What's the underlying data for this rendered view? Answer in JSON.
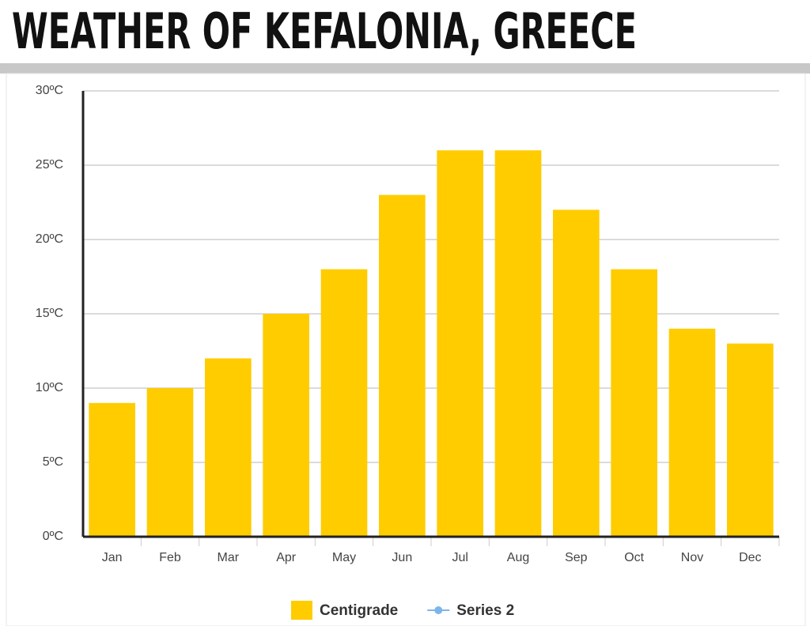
{
  "chart_data": {
    "type": "bar",
    "title": "WEATHER OF KEFALONIA, GREECE",
    "categories": [
      "Jan",
      "Feb",
      "Mar",
      "Apr",
      "May",
      "Jun",
      "Jul",
      "Aug",
      "Sep",
      "Oct",
      "Nov",
      "Dec"
    ],
    "series": [
      {
        "name": "Centigrade",
        "color": "#ffcc00",
        "values": [
          9,
          10,
          12,
          15,
          18,
          23,
          26,
          26,
          22,
          18,
          14,
          13
        ]
      },
      {
        "name": "Series 2",
        "color": "#7cb5ec",
        "values": [
          null,
          null,
          null,
          null,
          null,
          null,
          null,
          null,
          null,
          null,
          null,
          null
        ]
      }
    ],
    "ylim": [
      0,
      30
    ],
    "yticks": [
      {
        "value": 0,
        "label": "0ºC"
      },
      {
        "value": 5,
        "label": "5ºC"
      },
      {
        "value": 10,
        "label": "10ºC"
      },
      {
        "value": 15,
        "label": "15ºC"
      },
      {
        "value": 20,
        "label": "20ºC"
      },
      {
        "value": 25,
        "label": "25ºC"
      },
      {
        "value": 30,
        "label": "30ºC"
      }
    ],
    "grid": true,
    "legend": "bottom"
  }
}
